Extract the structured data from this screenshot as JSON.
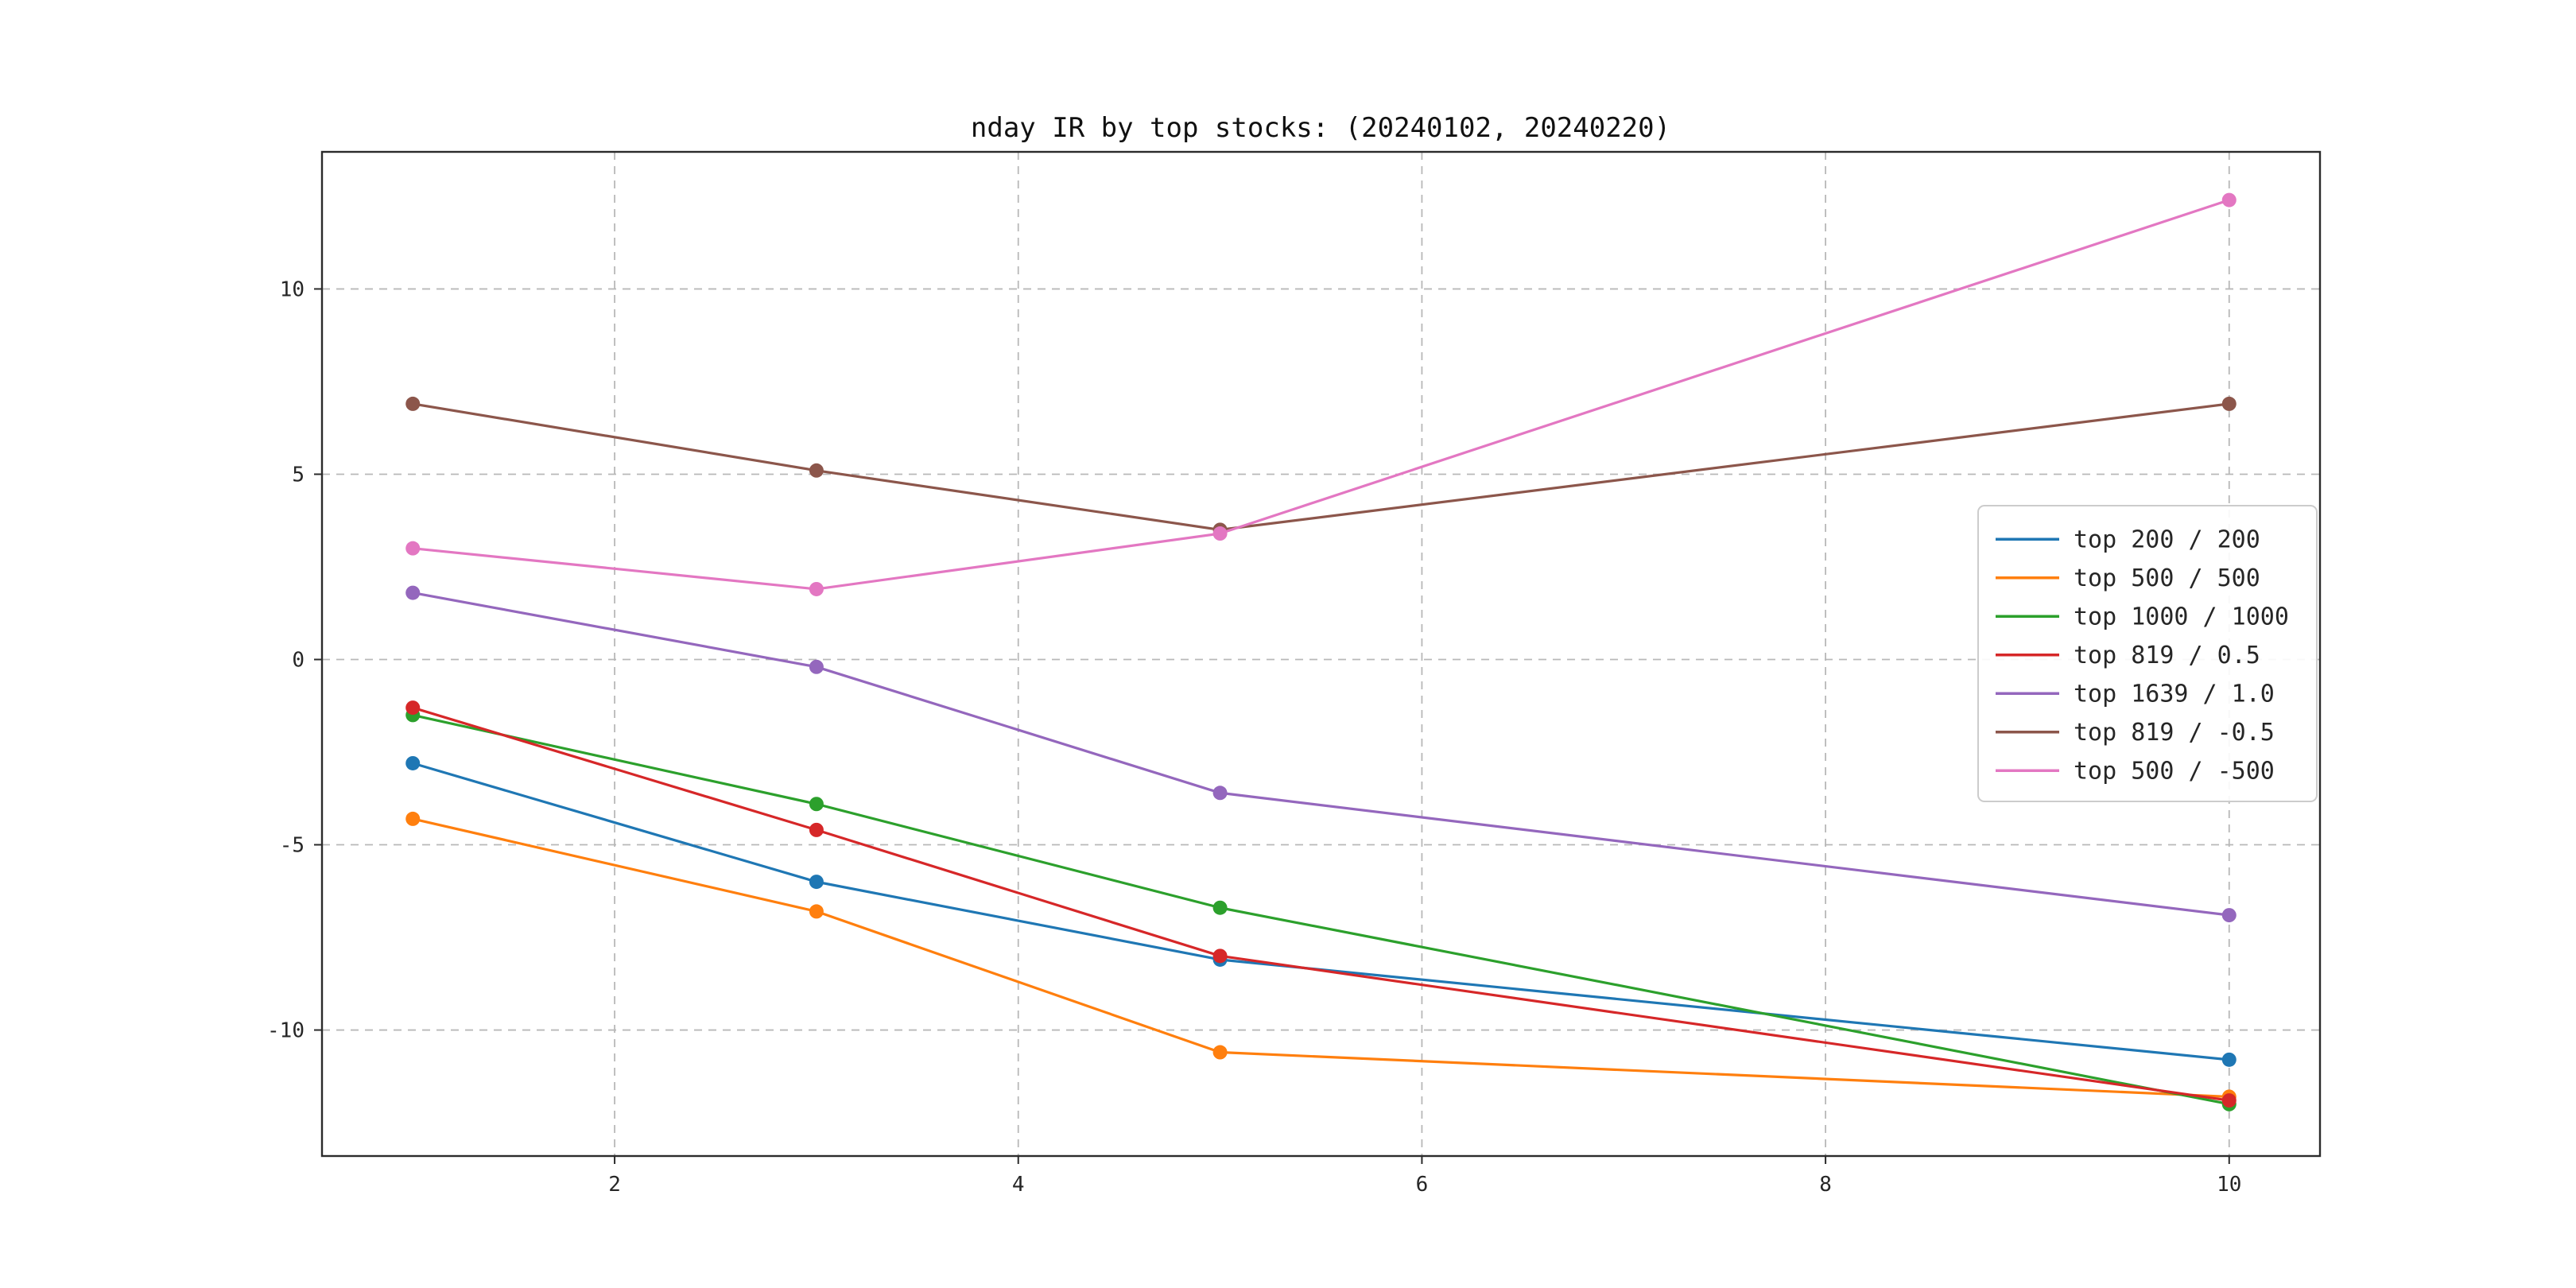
{
  "chart_data": {
    "type": "line",
    "title": "nday IR by top stocks: (20240102, 20240220)",
    "xlabel": "",
    "ylabel": "",
    "x": [
      1,
      3,
      5,
      10
    ],
    "series": [
      {
        "name": "top 200 / 200",
        "color": "#1f77b4",
        "values": [
          -2.8,
          -6.0,
          -8.1,
          -10.8
        ]
      },
      {
        "name": "top 500 / 500",
        "color": "#ff7f0e",
        "values": [
          -4.3,
          -6.8,
          -10.6,
          -11.8
        ]
      },
      {
        "name": "top 1000 / 1000",
        "color": "#2ca02c",
        "values": [
          -1.5,
          -3.9,
          -6.7,
          -12.0
        ]
      },
      {
        "name": "top 819 / 0.5",
        "color": "#d62728",
        "values": [
          -1.3,
          -4.6,
          -8.0,
          -11.9
        ]
      },
      {
        "name": "top 1639 / 1.0",
        "color": "#9467bd",
        "values": [
          1.8,
          -0.2,
          -3.6,
          -6.9
        ]
      },
      {
        "name": "top 819 / -0.5",
        "color": "#8c564b",
        "values": [
          6.9,
          5.1,
          3.5,
          6.9
        ]
      },
      {
        "name": "top 500 / -500",
        "color": "#e377c2",
        "values": [
          3.0,
          1.9,
          3.4,
          12.4
        ]
      }
    ],
    "xticks": [
      2,
      4,
      6,
      8,
      10
    ],
    "yticks": [
      -10,
      -5,
      0,
      5,
      10
    ],
    "xlim": [
      0.55,
      10.45
    ],
    "ylim": [
      -13.4,
      13.7
    ],
    "grid": true,
    "grid_style": "dashed",
    "legend_position": "center-right",
    "marker": "circle",
    "colors": {
      "axis_border": "#2b2b2b",
      "grid_line": "#b8b8b8",
      "legend_border": "#cccccc",
      "background": "#ffffff"
    }
  }
}
